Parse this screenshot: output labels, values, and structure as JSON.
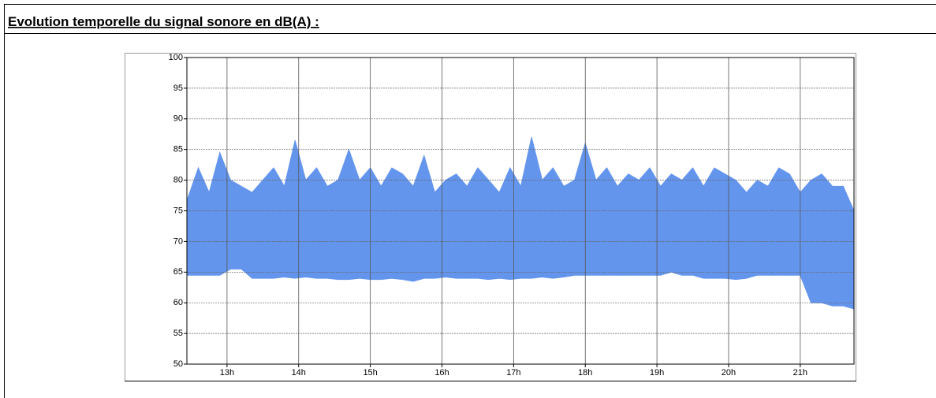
{
  "chart_data": {
    "type": "range-area",
    "title": "Evolution temporelle du signal sonore en dB(A) :",
    "color": "#6495ed",
    "x": [
      12.45,
      12.6,
      12.75,
      12.9,
      13.05,
      13.2,
      13.35,
      13.5,
      13.65,
      13.8,
      13.95,
      14.1,
      14.25,
      14.4,
      14.55,
      14.7,
      14.85,
      15.0,
      15.15,
      15.3,
      15.45,
      15.6,
      15.75,
      15.9,
      16.05,
      16.2,
      16.35,
      16.5,
      16.65,
      16.8,
      16.95,
      17.1,
      17.25,
      17.4,
      17.55,
      17.7,
      17.85,
      18.0,
      18.15,
      18.3,
      18.45,
      18.6,
      18.75,
      18.9,
      19.05,
      19.2,
      19.35,
      19.5,
      19.65,
      19.8,
      19.95,
      20.1,
      20.25,
      20.4,
      20.55,
      20.7,
      20.85,
      21.0,
      21.15,
      21.3,
      21.45,
      21.6,
      21.75
    ],
    "high": [
      77,
      82,
      78,
      84.5,
      80,
      79,
      78,
      80,
      82,
      79,
      86.5,
      80,
      82,
      79,
      80,
      85,
      80,
      82,
      79,
      82,
      81,
      79,
      84,
      78,
      80,
      81,
      79,
      82,
      80,
      78,
      82,
      79,
      87,
      80,
      82,
      79,
      80,
      86,
      80,
      82,
      79,
      81,
      80,
      82,
      79,
      81,
      80,
      82,
      79,
      82,
      81,
      80,
      78,
      80,
      79,
      82,
      81,
      78,
      80,
      81,
      79,
      79,
      75
    ],
    "low": [
      64.5,
      64.5,
      64.5,
      64.5,
      65.5,
      65.5,
      64,
      64,
      64,
      64.2,
      64,
      64.2,
      64,
      64,
      63.8,
      63.8,
      64,
      63.8,
      63.8,
      64,
      63.8,
      63.5,
      64,
      64,
      64.2,
      64,
      64,
      64,
      63.8,
      64,
      63.8,
      64,
      64,
      64.2,
      64,
      64.2,
      64.5,
      64.5,
      64.5,
      64.5,
      64.5,
      64.5,
      64.5,
      64.5,
      64.5,
      65,
      64.5,
      64.5,
      64,
      64,
      64,
      63.8,
      64,
      64.5,
      64.5,
      64.5,
      64.5,
      64.5,
      60,
      60,
      59.5,
      59.5,
      59
    ],
    "xlim": [
      12.44,
      21.75
    ],
    "xticks": [
      {
        "value": 13,
        "label": "13h"
      },
      {
        "value": 14,
        "label": "14h"
      },
      {
        "value": 15,
        "label": "15h"
      },
      {
        "value": 16,
        "label": "16h"
      },
      {
        "value": 17,
        "label": "17h"
      },
      {
        "value": 18,
        "label": "18h"
      },
      {
        "value": 19,
        "label": "19h"
      },
      {
        "value": 20,
        "label": "20h"
      },
      {
        "value": 21,
        "label": "21h"
      }
    ],
    "ylim": [
      50,
      100
    ],
    "yticks": [
      50,
      55,
      60,
      65,
      70,
      75,
      80,
      85,
      90,
      95,
      100
    ],
    "grid": true
  }
}
